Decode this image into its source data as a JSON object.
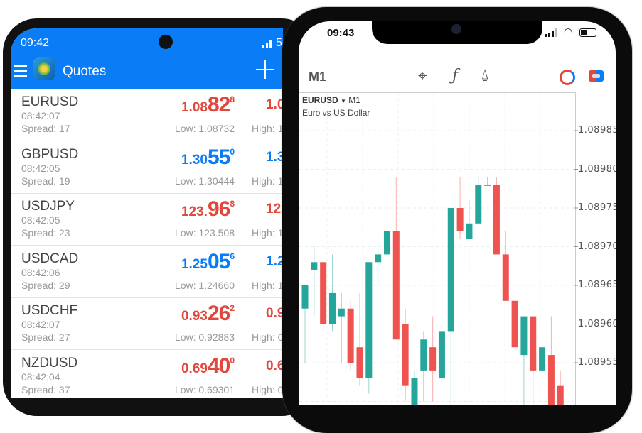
{
  "left_phone": {
    "status_time": "09:42",
    "status_right": "5",
    "header": {
      "title": "Quotes",
      "menu_icon": "hamburger-icon",
      "app_icon": "metatrader-logo",
      "add_icon": "plus-icon"
    },
    "colors": {
      "header": "#0a7cf6",
      "down": "#e0483e",
      "up": "#0a7cf6"
    },
    "quotes": [
      {
        "symbol": "EURUSD",
        "time": "08:42:07",
        "spread": "Spread: 17",
        "bid_small": "1.08",
        "bid_big": "82",
        "bid_pip": "8",
        "ask": "1.0",
        "low": "Low: 1.08732",
        "high": "High: 1.",
        "dir": "down"
      },
      {
        "symbol": "GBPUSD",
        "time": "08:42:05",
        "spread": "Spread: 19",
        "bid_small": "1.30",
        "bid_big": "55",
        "bid_pip": "0",
        "ask": "1.3",
        "low": "Low: 1.30444",
        "high": "High: 1",
        "dir": "up"
      },
      {
        "symbol": "USDJPY",
        "time": "08:42:05",
        "spread": "Spread: 23",
        "bid_small": "123.",
        "bid_big": "96",
        "bid_pip": "8",
        "ask": "123",
        "low": "Low: 123.508",
        "high": "High: 1",
        "dir": "down"
      },
      {
        "symbol": "USDCAD",
        "time": "08:42:06",
        "spread": "Spread: 29",
        "bid_small": "1.25",
        "bid_big": "05",
        "bid_pip": "6",
        "ask": "1.2",
        "low": "Low: 1.24660",
        "high": "High: 1",
        "dir": "up"
      },
      {
        "symbol": "USDCHF",
        "time": "08:42:07",
        "spread": "Spread: 27",
        "bid_small": "0.93",
        "bid_big": "26",
        "bid_pip": "2",
        "ask": "0.9",
        "low": "Low: 0.92883",
        "high": "High: 0",
        "dir": "down"
      },
      {
        "symbol": "NZDUSD",
        "time": "08:42:04",
        "spread": "Spread: 37",
        "bid_small": "0.69",
        "bid_big": "40",
        "bid_pip": "0",
        "ask": "0.6",
        "low": "Low: 0.69301",
        "high": "High: 0",
        "dir": "down"
      }
    ]
  },
  "right_phone": {
    "status_time": "09:43",
    "toolbar": {
      "timeframe": "M1",
      "icons": [
        "crosshair-icon",
        "function-icon",
        "objects-icon",
        "trade-clock-icon",
        "one-click-trading-icon"
      ]
    },
    "chart_header": {
      "symbol": "EURUSD",
      "timeframe": "M1",
      "description": "Euro vs US Dollar"
    },
    "price_labels": [
      "1.08985",
      "1.08980",
      "1.08975",
      "1.08970",
      "1.08965",
      "1.08960",
      "1.08955"
    ]
  },
  "chart_data": {
    "type": "candlestick",
    "colors": {
      "up": "#26a69a",
      "down": "#ef5350"
    },
    "grid": true,
    "ylim": [
      1.08948,
      1.08993
    ],
    "candles": [
      [
        1.08962,
        1.08965,
        1.08965,
        1.08955
      ],
      [
        1.08967,
        1.0897,
        1.08968,
        1.08961
      ],
      [
        1.08968,
        1.08968,
        1.0896,
        1.08959
      ],
      [
        1.0896,
        1.08969,
        1.08964,
        1.08959
      ],
      [
        1.08961,
        1.08964,
        1.08962,
        1.08955
      ],
      [
        1.08962,
        1.08963,
        1.08955,
        1.08954
      ],
      [
        1.08957,
        1.08964,
        1.08953,
        1.08952
      ],
      [
        1.08953,
        1.08968,
        1.08968,
        1.08951
      ],
      [
        1.08968,
        1.08971,
        1.08969,
        1.08965
      ],
      [
        1.08969,
        1.08972,
        1.08972,
        1.08967
      ],
      [
        1.08972,
        1.08979,
        1.08958,
        1.08958
      ],
      [
        1.0896,
        1.08962,
        1.08952,
        1.0895
      ],
      [
        1.08949,
        1.08954,
        1.08953,
        1.08948
      ],
      [
        1.08954,
        1.08959,
        1.08958,
        1.0895
      ],
      [
        1.08957,
        1.08961,
        1.08954,
        1.0895
      ],
      [
        1.08953,
        1.08959,
        1.08959,
        1.08952
      ],
      [
        1.08959,
        1.08975,
        1.08975,
        1.08948
      ],
      [
        1.08975,
        1.08979,
        1.08972,
        1.08971
      ],
      [
        1.08971,
        1.08976,
        1.08973,
        1.08971
      ],
      [
        1.08973,
        1.08979,
        1.08978,
        1.08973
      ],
      [
        1.08978,
        1.08979,
        1.08978,
        1.08978
      ],
      [
        1.08978,
        1.08979,
        1.08969,
        1.08969
      ],
      [
        1.08969,
        1.08972,
        1.08963,
        1.08963
      ],
      [
        1.08963,
        1.08963,
        1.08957,
        1.08957
      ],
      [
        1.08956,
        1.08961,
        1.08961,
        1.08948
      ],
      [
        1.08961,
        1.08961,
        1.08954,
        1.08948
      ],
      [
        1.08954,
        1.08958,
        1.08957,
        1.08954
      ],
      [
        1.08956,
        1.08961,
        1.08949,
        1.08948
      ],
      [
        1.08952,
        1.08954,
        1.08948,
        1.08948
      ]
    ]
  }
}
